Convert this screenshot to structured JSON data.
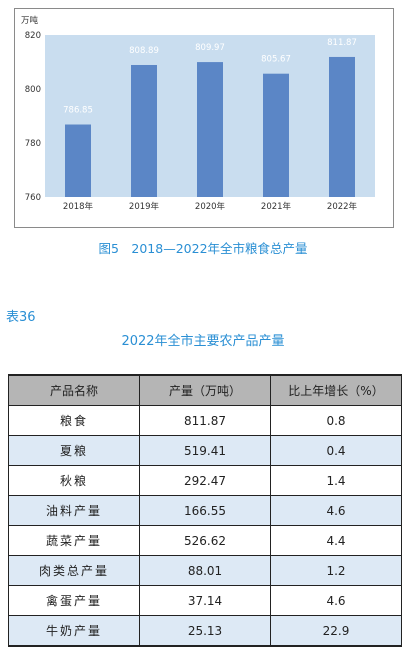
{
  "chart_data": {
    "type": "bar",
    "unit": "万吨",
    "categories": [
      "2018年",
      "2019年",
      "2020年",
      "2021年",
      "2022年"
    ],
    "values": [
      786.85,
      808.89,
      809.97,
      805.67,
      811.87
    ],
    "data_labels": [
      "786.85",
      "808.89",
      "809.97",
      "805.67",
      "811.87"
    ],
    "yticks": [
      "820",
      "800",
      "780",
      "760"
    ],
    "ylim": [
      760,
      820
    ],
    "grid": false,
    "plot_bg": "#c9ddef",
    "bar_color": "#5b86c6"
  },
  "figure_caption": "图5　2018—2022年全市粮食总产量",
  "table_id": "表36",
  "table_caption": "2022年全市主要农产品产量",
  "table": {
    "headers": [
      "产品名称",
      "产量（万吨）",
      "比上年增长（%）"
    ],
    "rows": [
      [
        "粮食",
        "811.87",
        "0.8"
      ],
      [
        "夏粮",
        "519.41",
        "0.4"
      ],
      [
        "秋粮",
        "292.47",
        "1.4"
      ],
      [
        "油料产量",
        "166.55",
        "4.6"
      ],
      [
        "蔬菜产量",
        "526.62",
        "4.4"
      ],
      [
        "肉类总产量",
        "88.01",
        "1.2"
      ],
      [
        "禽蛋产量",
        "37.14",
        "4.6"
      ],
      [
        "牛奶产量",
        "25.13",
        "22.9"
      ]
    ]
  }
}
